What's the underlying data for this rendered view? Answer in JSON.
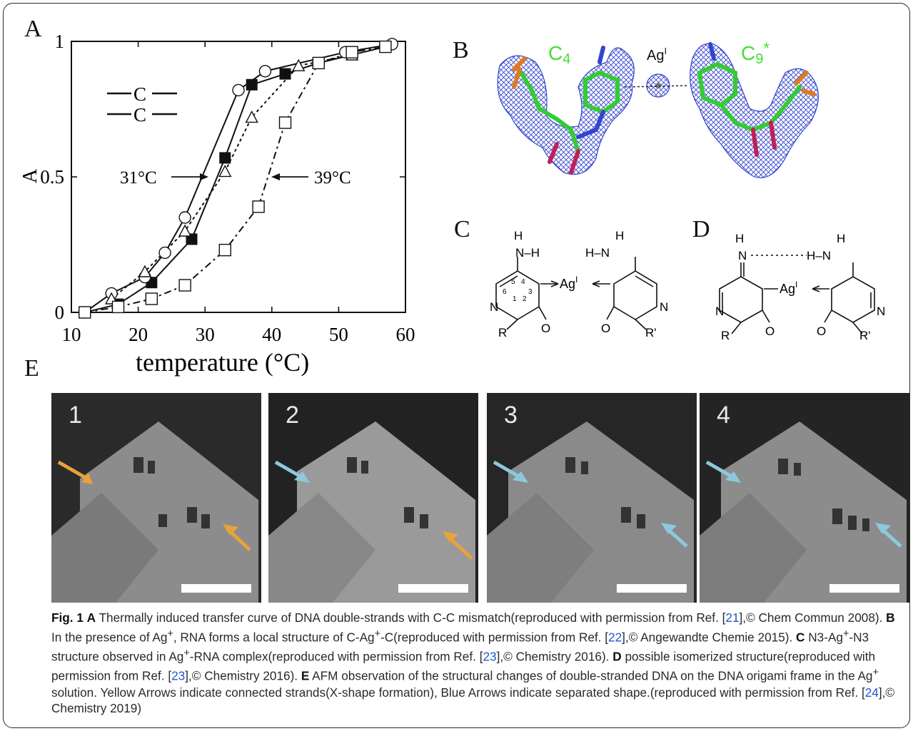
{
  "panels": {
    "a": "A",
    "b": "B",
    "c": "C",
    "d": "D",
    "e": "E"
  },
  "chart_data": {
    "type": "scatter",
    "title": "",
    "xlabel": "temperature (°C)",
    "ylabel": "A",
    "xlim": [
      10,
      60
    ],
    "ylim": [
      0,
      1
    ],
    "x_ticks": [
      "10",
      "20",
      "30",
      "40",
      "50",
      "60"
    ],
    "y_ticks": [
      "0",
      "0.5",
      "1"
    ],
    "inset_labels": [
      "C",
      "C"
    ],
    "annotations": [
      "31°C",
      "39°C"
    ],
    "grid": false,
    "series": [
      {
        "marker": "filled-square",
        "points": [
          [
            12,
            0.0
          ],
          [
            17,
            0.03
          ],
          [
            22,
            0.11
          ],
          [
            28,
            0.27
          ],
          [
            33,
            0.57
          ],
          [
            37,
            0.84
          ],
          [
            42,
            0.88
          ],
          [
            47,
            0.92
          ],
          [
            57,
            0.98
          ]
        ]
      },
      {
        "marker": "open-circle",
        "points": [
          [
            12,
            0.0
          ],
          [
            16,
            0.07
          ],
          [
            21,
            0.13
          ],
          [
            24,
            0.22
          ],
          [
            27,
            0.35
          ],
          [
            35,
            0.82
          ],
          [
            39,
            0.89
          ],
          [
            51,
            0.96
          ],
          [
            58,
            0.99
          ]
        ]
      },
      {
        "marker": "open-triangle",
        "points": [
          [
            16,
            0.05
          ],
          [
            21,
            0.15
          ],
          [
            27,
            0.3
          ],
          [
            33,
            0.52
          ],
          [
            37,
            0.72
          ],
          [
            44,
            0.91
          ],
          [
            52,
            0.95
          ]
        ]
      },
      {
        "marker": "open-square",
        "points": [
          [
            12,
            0.0
          ],
          [
            17,
            0.02
          ],
          [
            22,
            0.05
          ],
          [
            27,
            0.1
          ],
          [
            33,
            0.23
          ],
          [
            38,
            0.39
          ],
          [
            42,
            0.7
          ],
          [
            47,
            0.92
          ],
          [
            52,
            0.96
          ],
          [
            57,
            0.98
          ]
        ]
      }
    ]
  },
  "panel_b": {
    "label_left": "C",
    "label_left_sub": "4",
    "label_ag": "Ag",
    "label_ag_sup": "I",
    "label_right": "C",
    "label_right_sub": "9",
    "label_right_star": "*"
  },
  "panel_c": {
    "h1": "H",
    "nh": "N–H",
    "hn": "H–N",
    "h2": "H",
    "ag": "Ag",
    "ag_sup": "I",
    "n_left": "N",
    "n_right": "N",
    "o_left": "O",
    "o_right": "O",
    "r_left": "R",
    "r_right": "R'",
    "ring_numbers": [
      "5",
      "4",
      "6",
      "3",
      "1",
      "2"
    ]
  },
  "panel_d": {
    "h1": "H",
    "n_top": "N",
    "hn": "H–N",
    "h2": "H",
    "ag": "Ag",
    "ag_sup": "I",
    "n_left": "N",
    "n_right": "N",
    "o_left": "O",
    "o_right": "O",
    "r_left": "R",
    "r_right": "R'"
  },
  "afm_frames": [
    {
      "label": "1"
    },
    {
      "label": "2"
    },
    {
      "label": "3"
    },
    {
      "label": "4"
    }
  ],
  "colors": {
    "yellow_arrow": "#e8a23a",
    "blue_arrow": "#8ec8dc",
    "green_label": "#44dd33",
    "mesh_blue": "#3344cc"
  },
  "caption": {
    "fig": "Fig. 1",
    "a_label": "A",
    "a_text": "Thermally induced transfer curve of DNA double-strands with C-C mismatch(reproduced with permission from Ref. [",
    "ref21": "21",
    "a_tail": "],© Chem Commun 2008).",
    "b_label": "B",
    "b_text": "In the presence of Ag",
    "b_text2": ", RNA forms a local structure of C-Ag",
    "b_text3": "-C(reproduced with permission from Ref. [",
    "ref22": "22",
    "b_tail": "],© Angewandte Chemie 2015).",
    "c_label": "C",
    "c_text": "N3-Ag",
    "c_text2": "-N3 structure observed in Ag",
    "c_text3": "-RNA complex(reproduced with permission from Ref. [",
    "ref23a": "23",
    "c_tail": "],© Chemistry 2016).",
    "d_label": "D",
    "d_text": "possible isomerized structure(reproduced with permission from Ref. [",
    "ref23b": "23",
    "d_tail": "],© Chemistry 2016).",
    "e_label": "E",
    "e_text": "AFM observation of the structural changes of double-stranded DNA on the DNA origami frame in the Ag",
    "e_text2": "solution. Yellow Arrows indicate connected strands(X-shape formation), Blue Arrows indicate separated shape.(reproduced with permission from Ref. [",
    "ref24": "24",
    "e_tail": "],© Chemistry 2019)",
    "plus": "+"
  }
}
